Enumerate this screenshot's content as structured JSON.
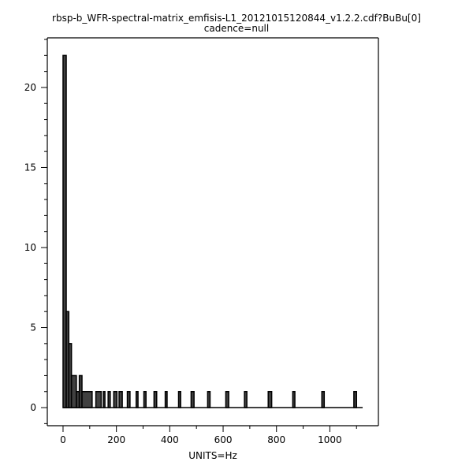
{
  "chart_data": {
    "type": "bar",
    "title": "rbsp-b_WFR-spectral-matrix_emfisis-L1_20121015120844_v1.2.2.cdf?BuBu[0]",
    "subtitle": "cadence=null",
    "xlabel": "UNITS=Hz",
    "ylabel": "",
    "xlim": [
      -59,
      1182
    ],
    "ylim": [
      -1.13,
      23.1
    ],
    "x_major_ticks": [
      0,
      200,
      400,
      600,
      800,
      1000
    ],
    "x_minor_step": 100,
    "y_major_ticks": [
      0,
      5,
      10,
      15,
      20
    ],
    "y_minor_step": 1,
    "grid": false,
    "fill_color": "#404040",
    "line_color": "#000000",
    "baseline_end": 1123,
    "bins": [
      {
        "x0": 0,
        "x1": 12,
        "count": 22
      },
      {
        "x0": 12,
        "x1": 21.6,
        "count": 6
      },
      {
        "x0": 21.6,
        "x1": 31.6,
        "count": 4
      },
      {
        "x0": 31.6,
        "x1": 50,
        "count": 2
      },
      {
        "x0": 50,
        "x1": 61,
        "count": 1
      },
      {
        "x0": 61,
        "x1": 71,
        "count": 2
      },
      {
        "x0": 71,
        "x1": 109,
        "count": 1
      },
      {
        "x0": 123,
        "x1": 143,
        "count": 1
      },
      {
        "x0": 151,
        "x1": 157,
        "count": 1
      },
      {
        "x0": 169,
        "x1": 177,
        "count": 1
      },
      {
        "x0": 190,
        "x1": 202,
        "count": 1
      },
      {
        "x0": 210,
        "x1": 222,
        "count": 1
      },
      {
        "x0": 241,
        "x1": 251,
        "count": 1
      },
      {
        "x0": 274,
        "x1": 281,
        "count": 1
      },
      {
        "x0": 303,
        "x1": 311,
        "count": 1
      },
      {
        "x0": 341,
        "x1": 351,
        "count": 1
      },
      {
        "x0": 383,
        "x1": 390,
        "count": 1
      },
      {
        "x0": 433,
        "x1": 441,
        "count": 1
      },
      {
        "x0": 480,
        "x1": 491,
        "count": 1
      },
      {
        "x0": 542,
        "x1": 551,
        "count": 1
      },
      {
        "x0": 610,
        "x1": 621,
        "count": 1
      },
      {
        "x0": 680,
        "x1": 689,
        "count": 1
      },
      {
        "x0": 769,
        "x1": 782,
        "count": 1
      },
      {
        "x0": 861,
        "x1": 869,
        "count": 1
      },
      {
        "x0": 970,
        "x1": 979,
        "count": 1
      },
      {
        "x0": 1090,
        "x1": 1100,
        "count": 1
      }
    ]
  }
}
